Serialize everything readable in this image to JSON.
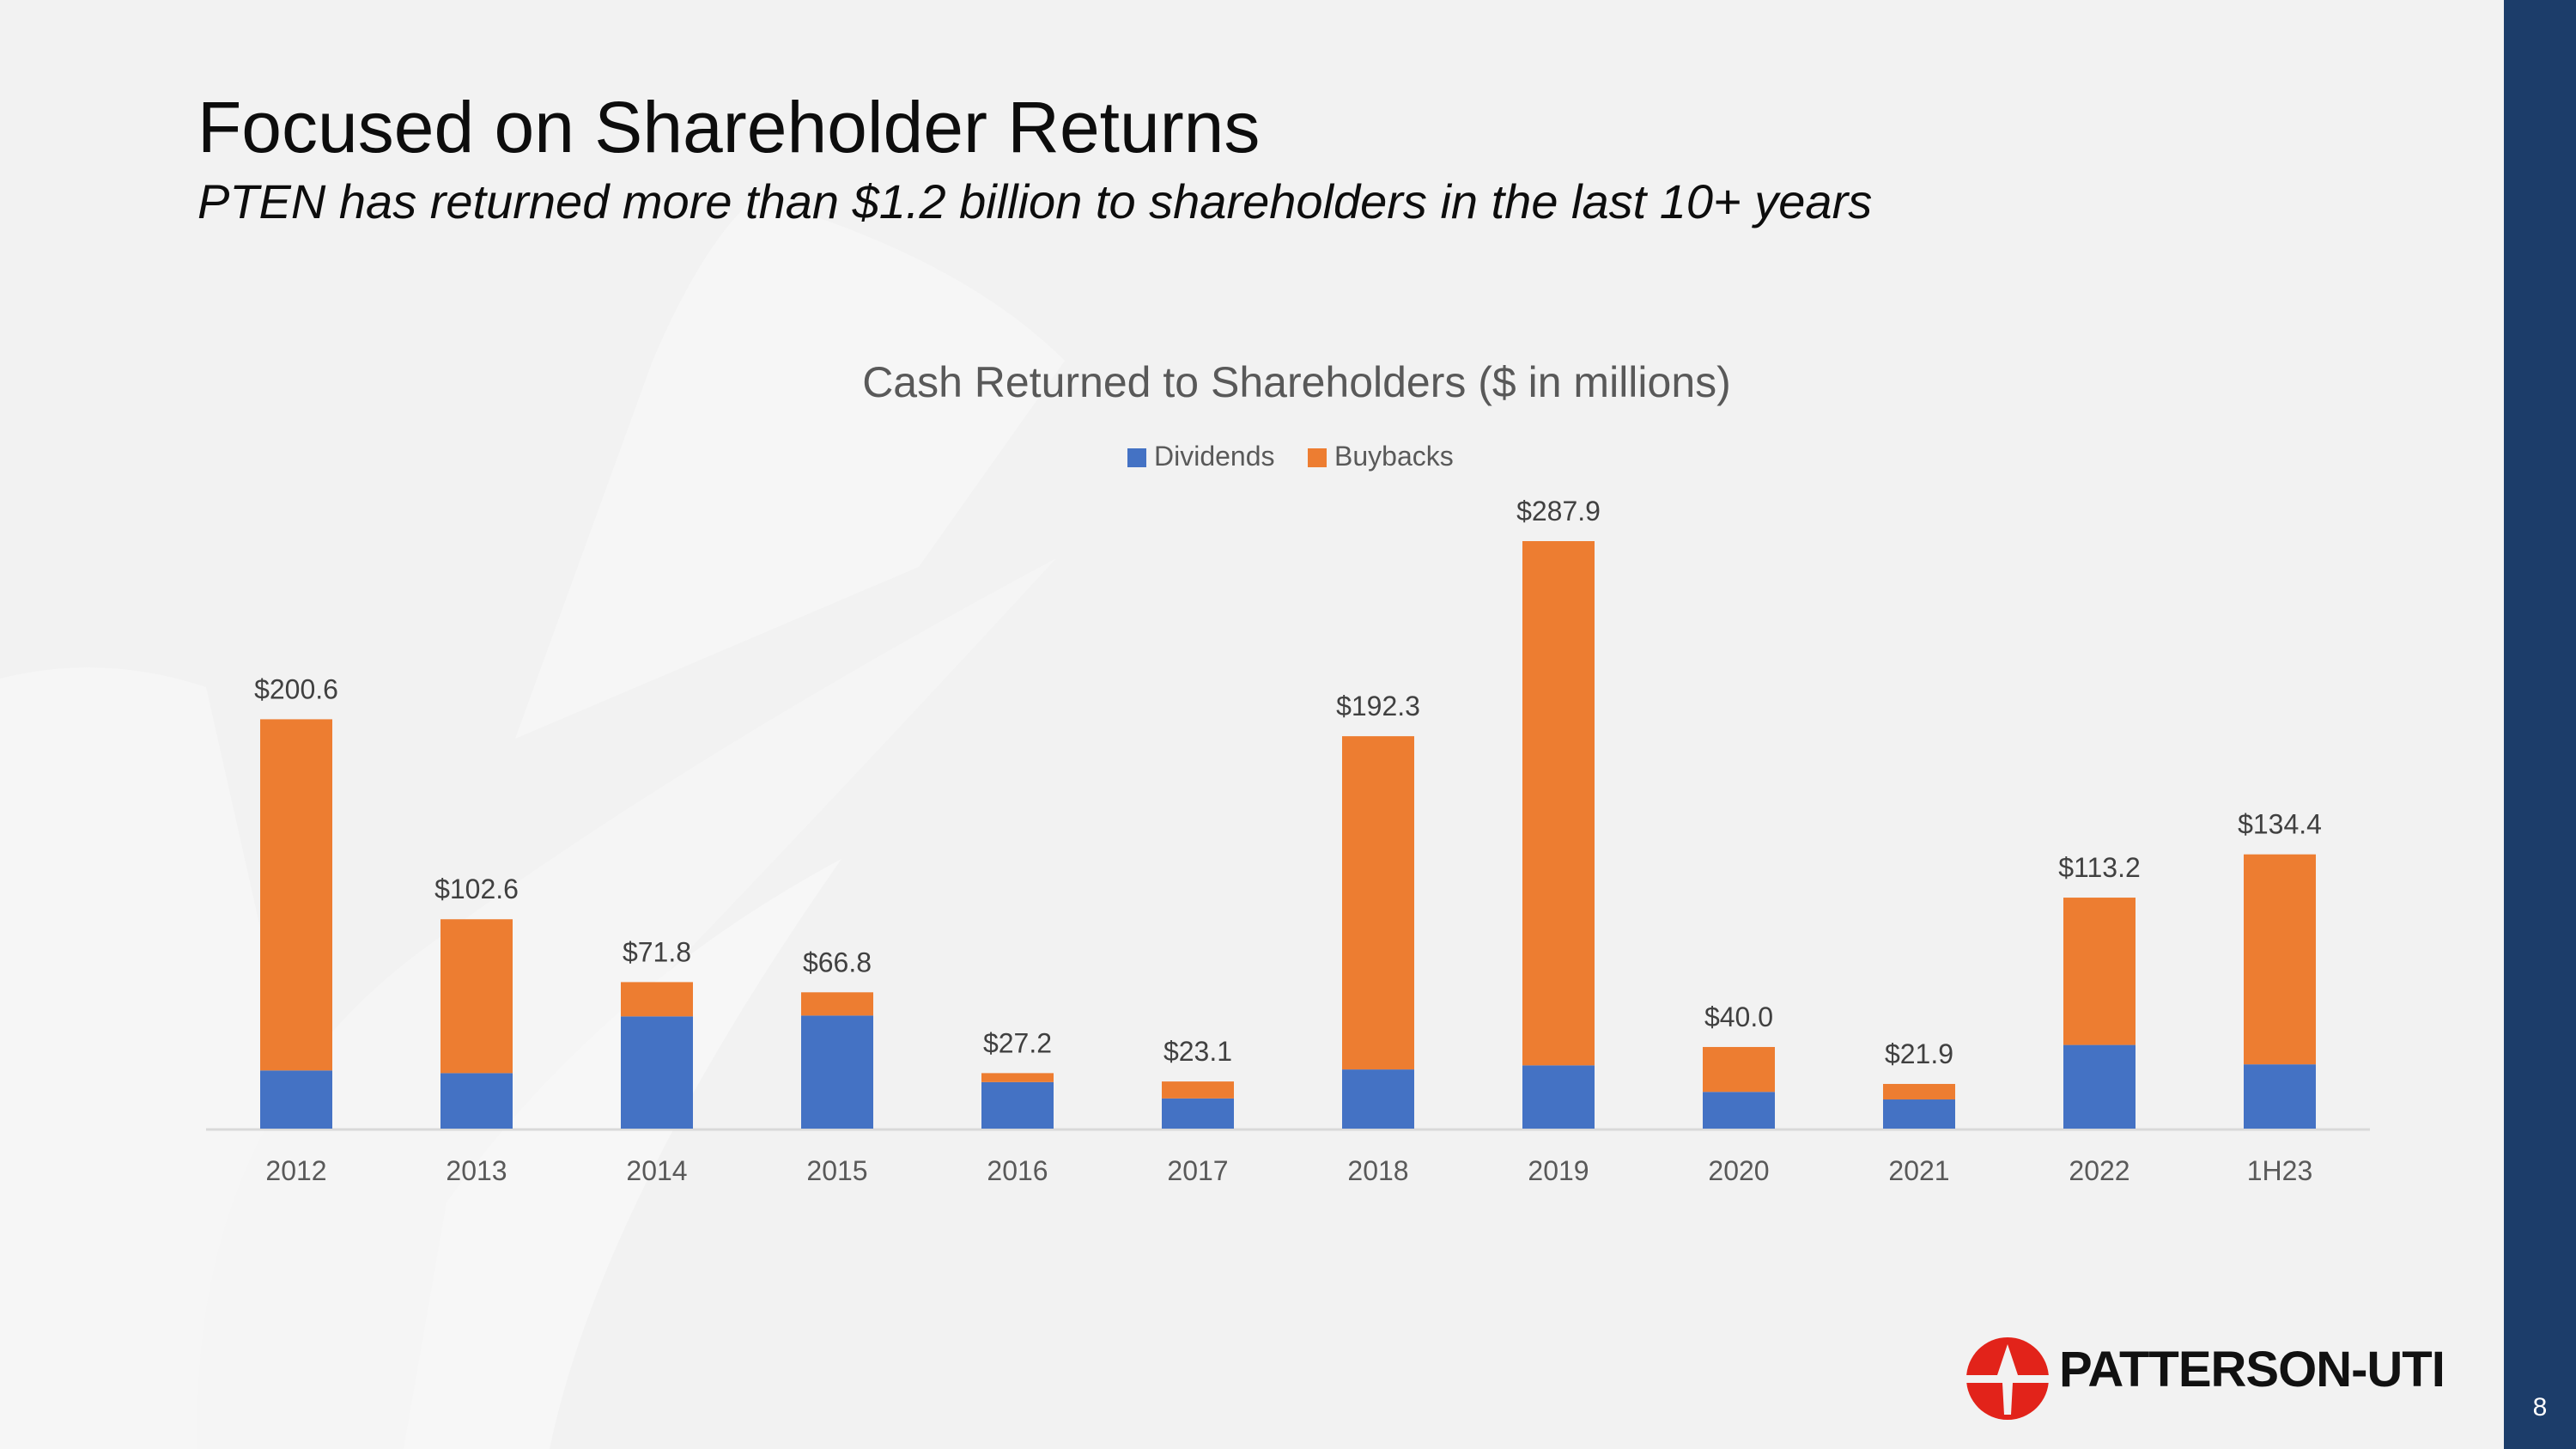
{
  "slide": {
    "title": "Focused on Shareholder Returns",
    "subtitle": "PTEN has returned more than $1.2 billion to shareholders in the last 10+ years",
    "page_number": "8",
    "logo_text": "PATTERSON-UTI"
  },
  "colors": {
    "dividends": "#4472c4",
    "buybacks": "#ed7d31",
    "side_bar": "#1c3d6a",
    "logo_red": "#e2231a",
    "text_gray": "#595959"
  },
  "chart_data": {
    "type": "bar",
    "stacked": true,
    "title": "Cash Returned to Shareholders ($ in millions)",
    "xlabel": "",
    "ylabel": "",
    "ylim": [
      0,
      287.9
    ],
    "grid": false,
    "legend": "top-center",
    "categories": [
      "2012",
      "2013",
      "2014",
      "2015",
      "2016",
      "2017",
      "2018",
      "2019",
      "2020",
      "2021",
      "2022",
      "1H23"
    ],
    "series": [
      {
        "name": "Dividends",
        "values": [
          28.5,
          27.2,
          55.0,
          55.4,
          22.8,
          14.8,
          29.0,
          31.0,
          18.0,
          14.3,
          41.0,
          31.5
        ]
      },
      {
        "name": "Buybacks",
        "values": [
          172.1,
          75.4,
          16.8,
          11.4,
          4.4,
          8.3,
          163.3,
          256.9,
          22.0,
          7.6,
          72.2,
          102.9
        ]
      }
    ],
    "totals": [
      200.6,
      102.6,
      71.8,
      66.8,
      27.2,
      23.1,
      192.3,
      287.9,
      40.0,
      21.9,
      113.2,
      134.4
    ],
    "total_labels": [
      "$200.6",
      "$102.6",
      "$71.8",
      "$66.8",
      "$27.2",
      "$23.1",
      "$192.3",
      "$287.9",
      "$40.0",
      "$21.9",
      "$113.2",
      "$134.4"
    ]
  }
}
